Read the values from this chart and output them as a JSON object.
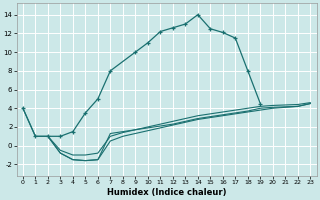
{
  "xlabel": "Humidex (Indice chaleur)",
  "bg_color": "#cce8e8",
  "grid_color": "#ffffff",
  "line_color": "#1a7070",
  "xlim": [
    -0.5,
    23.5
  ],
  "ylim": [
    -3.2,
    15.2
  ],
  "xticks": [
    0,
    1,
    2,
    3,
    4,
    5,
    6,
    7,
    8,
    9,
    10,
    11,
    12,
    13,
    14,
    15,
    16,
    17,
    18,
    19,
    20,
    21,
    22,
    23
  ],
  "yticks": [
    -2,
    0,
    2,
    4,
    6,
    8,
    10,
    12,
    14
  ],
  "main_x": [
    0,
    1,
    2,
    3,
    4,
    5,
    6,
    7,
    9,
    10,
    11,
    12,
    13,
    14,
    15,
    16,
    17,
    18,
    19
  ],
  "main_y": [
    4.0,
    1.0,
    1.0,
    1.0,
    1.5,
    3.5,
    5.0,
    8.0,
    10.0,
    11.0,
    12.2,
    12.6,
    13.0,
    14.0,
    12.5,
    12.1,
    11.5,
    8.0,
    4.5
  ],
  "line2_x": [
    0,
    1,
    2,
    3,
    4,
    5,
    6,
    7,
    8,
    9,
    10,
    11,
    12,
    13,
    14,
    15,
    16,
    17,
    18,
    19,
    20,
    21,
    22,
    23
  ],
  "line2_y": [
    4.0,
    1.0,
    1.0,
    -0.8,
    -1.5,
    -1.6,
    -1.5,
    1.3,
    1.5,
    1.7,
    1.9,
    2.1,
    2.3,
    2.6,
    2.9,
    3.1,
    3.3,
    3.5,
    3.7,
    4.0,
    4.1,
    4.15,
    4.2,
    4.5
  ],
  "line3_x": [
    2,
    3,
    4,
    5,
    6,
    7,
    8,
    9,
    10,
    11,
    12,
    13,
    14,
    15,
    16,
    17,
    18,
    19,
    20,
    21,
    22,
    23
  ],
  "line3_y": [
    1.0,
    -0.8,
    -1.5,
    -1.6,
    -1.5,
    0.5,
    1.0,
    1.3,
    1.6,
    1.9,
    2.2,
    2.5,
    2.8,
    3.0,
    3.2,
    3.4,
    3.6,
    3.8,
    4.0,
    4.1,
    4.2,
    4.5
  ],
  "line4_x": [
    2,
    3,
    4,
    5,
    6,
    7,
    8,
    9,
    10,
    11,
    12,
    13,
    14,
    15,
    16,
    17,
    18,
    19,
    20,
    21,
    22,
    23
  ],
  "line4_y": [
    1.0,
    -0.5,
    -1.0,
    -1.0,
    -0.8,
    1.0,
    1.4,
    1.7,
    2.0,
    2.3,
    2.6,
    2.9,
    3.2,
    3.4,
    3.6,
    3.8,
    4.0,
    4.2,
    4.3,
    4.35,
    4.4,
    4.6
  ]
}
